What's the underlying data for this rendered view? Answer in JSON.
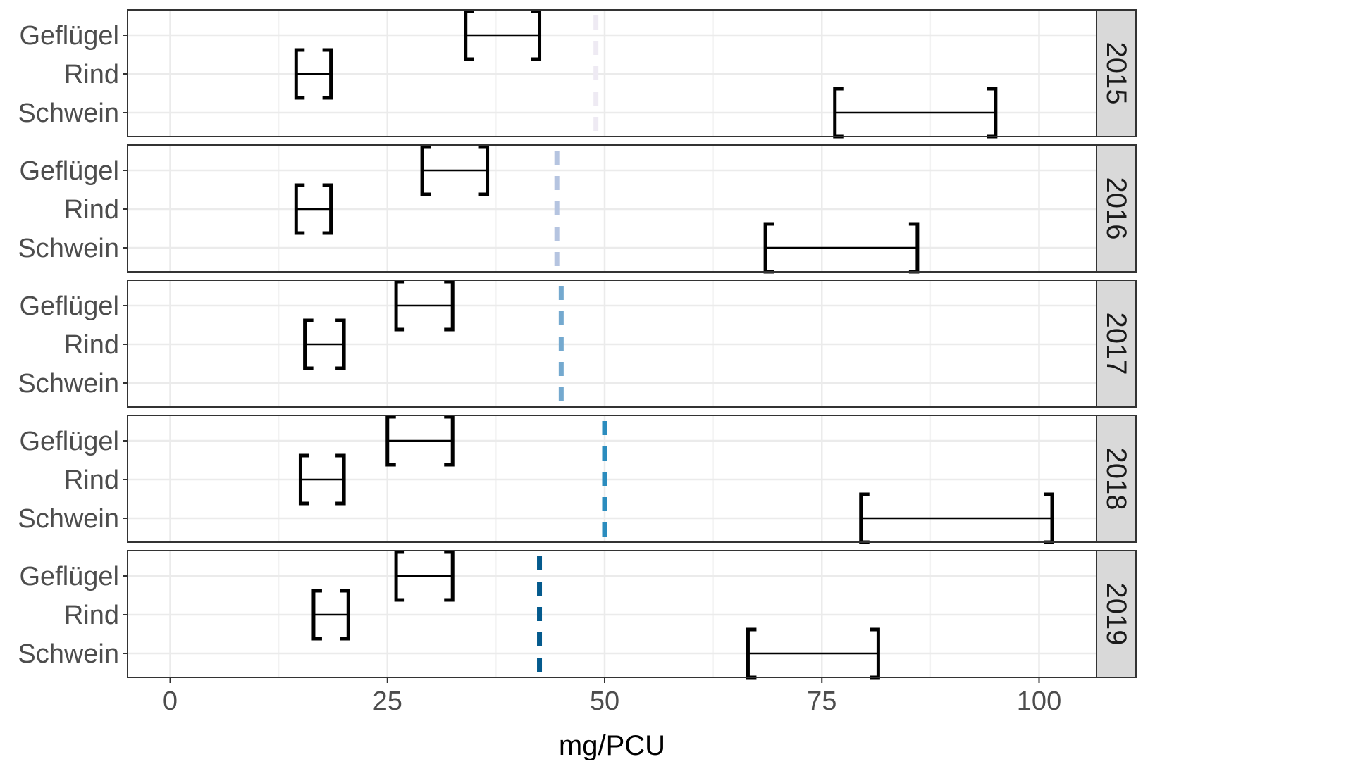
{
  "chart_data": {
    "type": "interval",
    "title": "",
    "xlabel": "mg/PCU",
    "ylabel": "",
    "xlim": [
      -10,
      106
    ],
    "x_ticks": [
      0,
      25,
      50,
      75,
      100
    ],
    "x_tick_labels": [
      "0",
      "25",
      "50",
      "75",
      "100"
    ],
    "categories": [
      "Geflügel",
      "Rind",
      "Schwein"
    ],
    "grid": true,
    "facets": [
      {
        "label": "2015",
        "reference_line": {
          "value": 49,
          "color": "#eeeaf3"
        },
        "intervals": [
          {
            "category": "Geflügel",
            "low": 34,
            "high": 42.5
          },
          {
            "category": "Rind",
            "low": 14.5,
            "high": 18.5
          },
          {
            "category": "Schwein",
            "low": 76.5,
            "high": 95
          }
        ]
      },
      {
        "label": "2016",
        "reference_line": {
          "value": 44.5,
          "color": "#b5c4e0"
        },
        "intervals": [
          {
            "category": "Geflügel",
            "low": 29,
            "high": 36.5
          },
          {
            "category": "Rind",
            "low": 14.5,
            "high": 18.5
          },
          {
            "category": "Schwein",
            "low": 68.5,
            "high": 86
          }
        ]
      },
      {
        "label": "2017",
        "reference_line": {
          "value": 45,
          "color": "#74a9cf"
        },
        "intervals": [
          {
            "category": "Geflügel",
            "low": 26,
            "high": 32.5
          },
          {
            "category": "Rind",
            "low": 15.5,
            "high": 20
          }
        ]
      },
      {
        "label": "2018",
        "reference_line": {
          "value": 50,
          "color": "#2b8cbe"
        },
        "intervals": [
          {
            "category": "Geflügel",
            "low": 25,
            "high": 32.5
          },
          {
            "category": "Rind",
            "low": 15,
            "high": 20
          },
          {
            "category": "Schwein",
            "low": 79.5,
            "high": 101.5
          }
        ]
      },
      {
        "label": "2019",
        "reference_line": {
          "value": 42.5,
          "color": "#045a8d"
        },
        "intervals": [
          {
            "category": "Geflügel",
            "low": 26,
            "high": 32.5
          },
          {
            "category": "Rind",
            "low": 16.5,
            "high": 20.5
          },
          {
            "category": "Schwein",
            "low": 66.5,
            "high": 81.5
          }
        ]
      }
    ]
  }
}
